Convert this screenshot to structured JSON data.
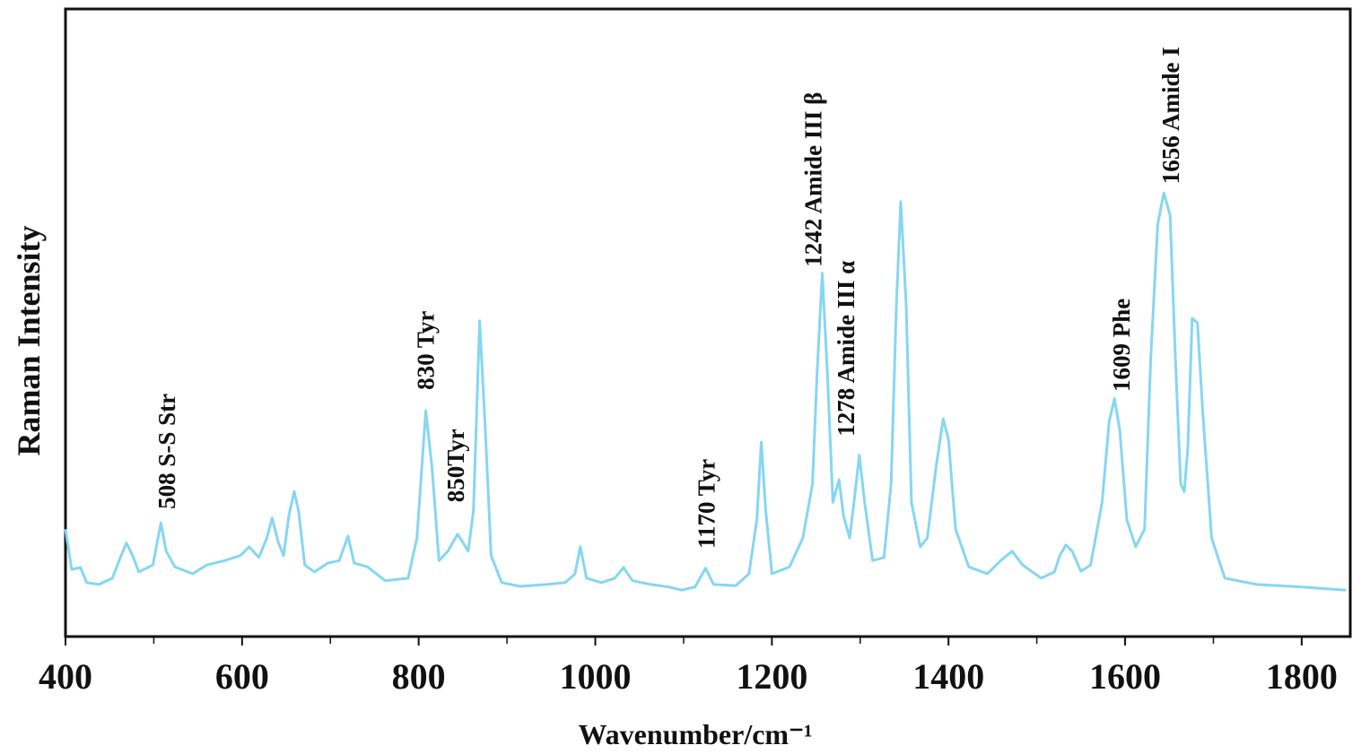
{
  "chart_data": {
    "type": "line",
    "xlabel": "Wavenumber/cm⁻¹",
    "ylabel": "Raman Intensity",
    "xlim": [
      400,
      1855
    ],
    "ylim": [
      0,
      100
    ],
    "xticks": [
      400,
      600,
      800,
      1000,
      1200,
      1400,
      1600,
      1800
    ],
    "xminor_ticks": [
      500,
      700,
      900,
      1100,
      1300,
      1500,
      1700
    ],
    "series": [
      {
        "color": "#86d6f2",
        "x": [
          400,
          407,
          417,
          424,
          438,
          453,
          463,
          469,
          476,
          483,
          499,
          508,
          514,
          524,
          544,
          560,
          580,
          598,
          608,
          619,
          628,
          634,
          641,
          647,
          653,
          659,
          664,
          671,
          682,
          697,
          710,
          720,
          727,
          742,
          762,
          788,
          798,
          808,
          815,
          823,
          833,
          844,
          850,
          856,
          862,
          869,
          875,
          882,
          894,
          915,
          945,
          966,
          977,
          983,
          990,
          1007,
          1022,
          1032,
          1042,
          1063,
          1083,
          1098,
          1113,
          1125,
          1134,
          1159,
          1174,
          1183,
          1188,
          1193,
          1200,
          1220,
          1235,
          1246,
          1251,
          1257,
          1263,
          1269,
          1276,
          1281,
          1288,
          1293,
          1299,
          1305,
          1314,
          1327,
          1335,
          1341,
          1346,
          1352,
          1358,
          1368,
          1376,
          1386,
          1394,
          1400,
          1408,
          1423,
          1444,
          1459,
          1472,
          1484,
          1505,
          1520,
          1526,
          1533,
          1540,
          1550,
          1561,
          1574,
          1582,
          1588,
          1594,
          1602,
          1612,
          1622,
          1629,
          1637,
          1644,
          1651,
          1657,
          1663,
          1667,
          1671,
          1676,
          1682,
          1688,
          1698,
          1713,
          1749,
          1800,
          1850
        ],
        "values": [
          17.1,
          10.7,
          11,
          8.6,
          8.3,
          9.3,
          12.9,
          14.9,
          12.9,
          10.3,
          11.4,
          18.1,
          13.6,
          11.1,
          10,
          11.4,
          12.1,
          12.9,
          14.3,
          12.6,
          15.7,
          18.9,
          15,
          12.9,
          19.3,
          23.1,
          20,
          11.4,
          10.3,
          11.7,
          12.1,
          16,
          11.7,
          11.1,
          8.9,
          9.3,
          15.7,
          36,
          27.1,
          12.1,
          13.6,
          16.3,
          15,
          13.6,
          20,
          50.3,
          34.3,
          12.9,
          8.6,
          8,
          8.3,
          8.6,
          10,
          14.3,
          9.3,
          8.6,
          9.3,
          11,
          8.9,
          8.3,
          7.9,
          7.4,
          7.9,
          10.9,
          8.3,
          8.1,
          10,
          18.6,
          31,
          20,
          10,
          11.1,
          15.7,
          24.3,
          41.4,
          57.9,
          41.4,
          21.4,
          25,
          19.3,
          15.7,
          21.4,
          28.9,
          21.4,
          12.1,
          12.6,
          24.3,
          52.9,
          69.3,
          52.9,
          21.4,
          14.3,
          15.7,
          27.1,
          34.7,
          31.4,
          17.1,
          11.1,
          10,
          12.1,
          13.6,
          11.4,
          9.3,
          10.3,
          12.9,
          14.6,
          13.6,
          10.4,
          11.4,
          21.4,
          34.3,
          37.9,
          32.9,
          18.6,
          14.3,
          17.1,
          44.3,
          65.7,
          70.7,
          67.1,
          44.3,
          24.3,
          23.1,
          30,
          50.7,
          50,
          35.7,
          15.7,
          9.3,
          8.3,
          7.9,
          7.4
        ]
      }
    ],
    "annotations": [
      {
        "text": "508 S-S Str",
        "x": 515,
        "y": 20.3
      },
      {
        "text": "830 Tyr",
        "x": 808,
        "y": 39.3
      },
      {
        "text": "850Tyr",
        "x": 842,
        "y": 21.4
      },
      {
        "text": "1170 Tyr",
        "x": 1126,
        "y": 14
      },
      {
        "text": "1242 Amide III β",
        "x": 1247,
        "y": 58.9
      },
      {
        "text": "1278 Amide III α",
        "x": 1284,
        "y": 31.9
      },
      {
        "text": "1609 Phe",
        "x": 1596,
        "y": 39
      },
      {
        "text": "1656 Amide I",
        "x": 1652,
        "y": 72.1
      }
    ]
  }
}
